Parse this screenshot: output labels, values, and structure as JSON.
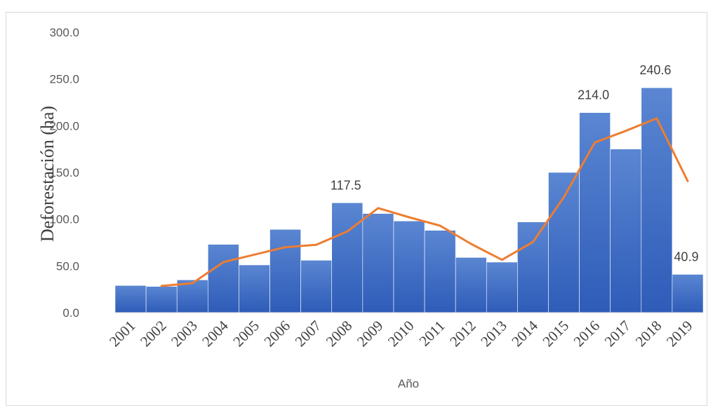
{
  "chart_data": {
    "type": "bar",
    "xlabel": "Año",
    "ylabel": "Deforestación (ha)",
    "ylim": [
      0,
      300
    ],
    "yticks": [
      "0.0",
      "50.0",
      "100.0",
      "150.0",
      "200.0",
      "250.0",
      "300.0"
    ],
    "categories": [
      "2001",
      "2002",
      "2003",
      "2004",
      "2005",
      "2006",
      "2007",
      "2008",
      "2009",
      "2010",
      "2011",
      "2012",
      "2013",
      "2014",
      "2015",
      "2016",
      "2017",
      "2018",
      "2019"
    ],
    "values": [
      29,
      28,
      35,
      73,
      51,
      89,
      56,
      117.5,
      106,
      98,
      88,
      59,
      54,
      97,
      150,
      214.0,
      175,
      240.6,
      40.9
    ],
    "data_labels": [
      {
        "category": "2008",
        "text": "117.5"
      },
      {
        "category": "2016",
        "text": "214.0"
      },
      {
        "category": "2018",
        "text": "240.6"
      },
      {
        "category": "2019",
        "text": "40.9"
      }
    ],
    "trend_line": {
      "type": "moving-average",
      "x": [
        "2002",
        "2003",
        "2004",
        "2005",
        "2006",
        "2007",
        "2008",
        "2009",
        "2010",
        "2011",
        "2012",
        "2013",
        "2014",
        "2015",
        "2016",
        "2017",
        "2018",
        "2019"
      ],
      "values": [
        28.5,
        31.5,
        54,
        62,
        70,
        72.5,
        86.8,
        111.8,
        102,
        93,
        73.5,
        56.5,
        75.5,
        123.5,
        182,
        194.5,
        207.8,
        140.8
      ]
    },
    "colors": {
      "bar": "#4472c4",
      "line": "#ed7d31",
      "grid": "#d9d9d9"
    },
    "grid": false,
    "legend": "none"
  }
}
